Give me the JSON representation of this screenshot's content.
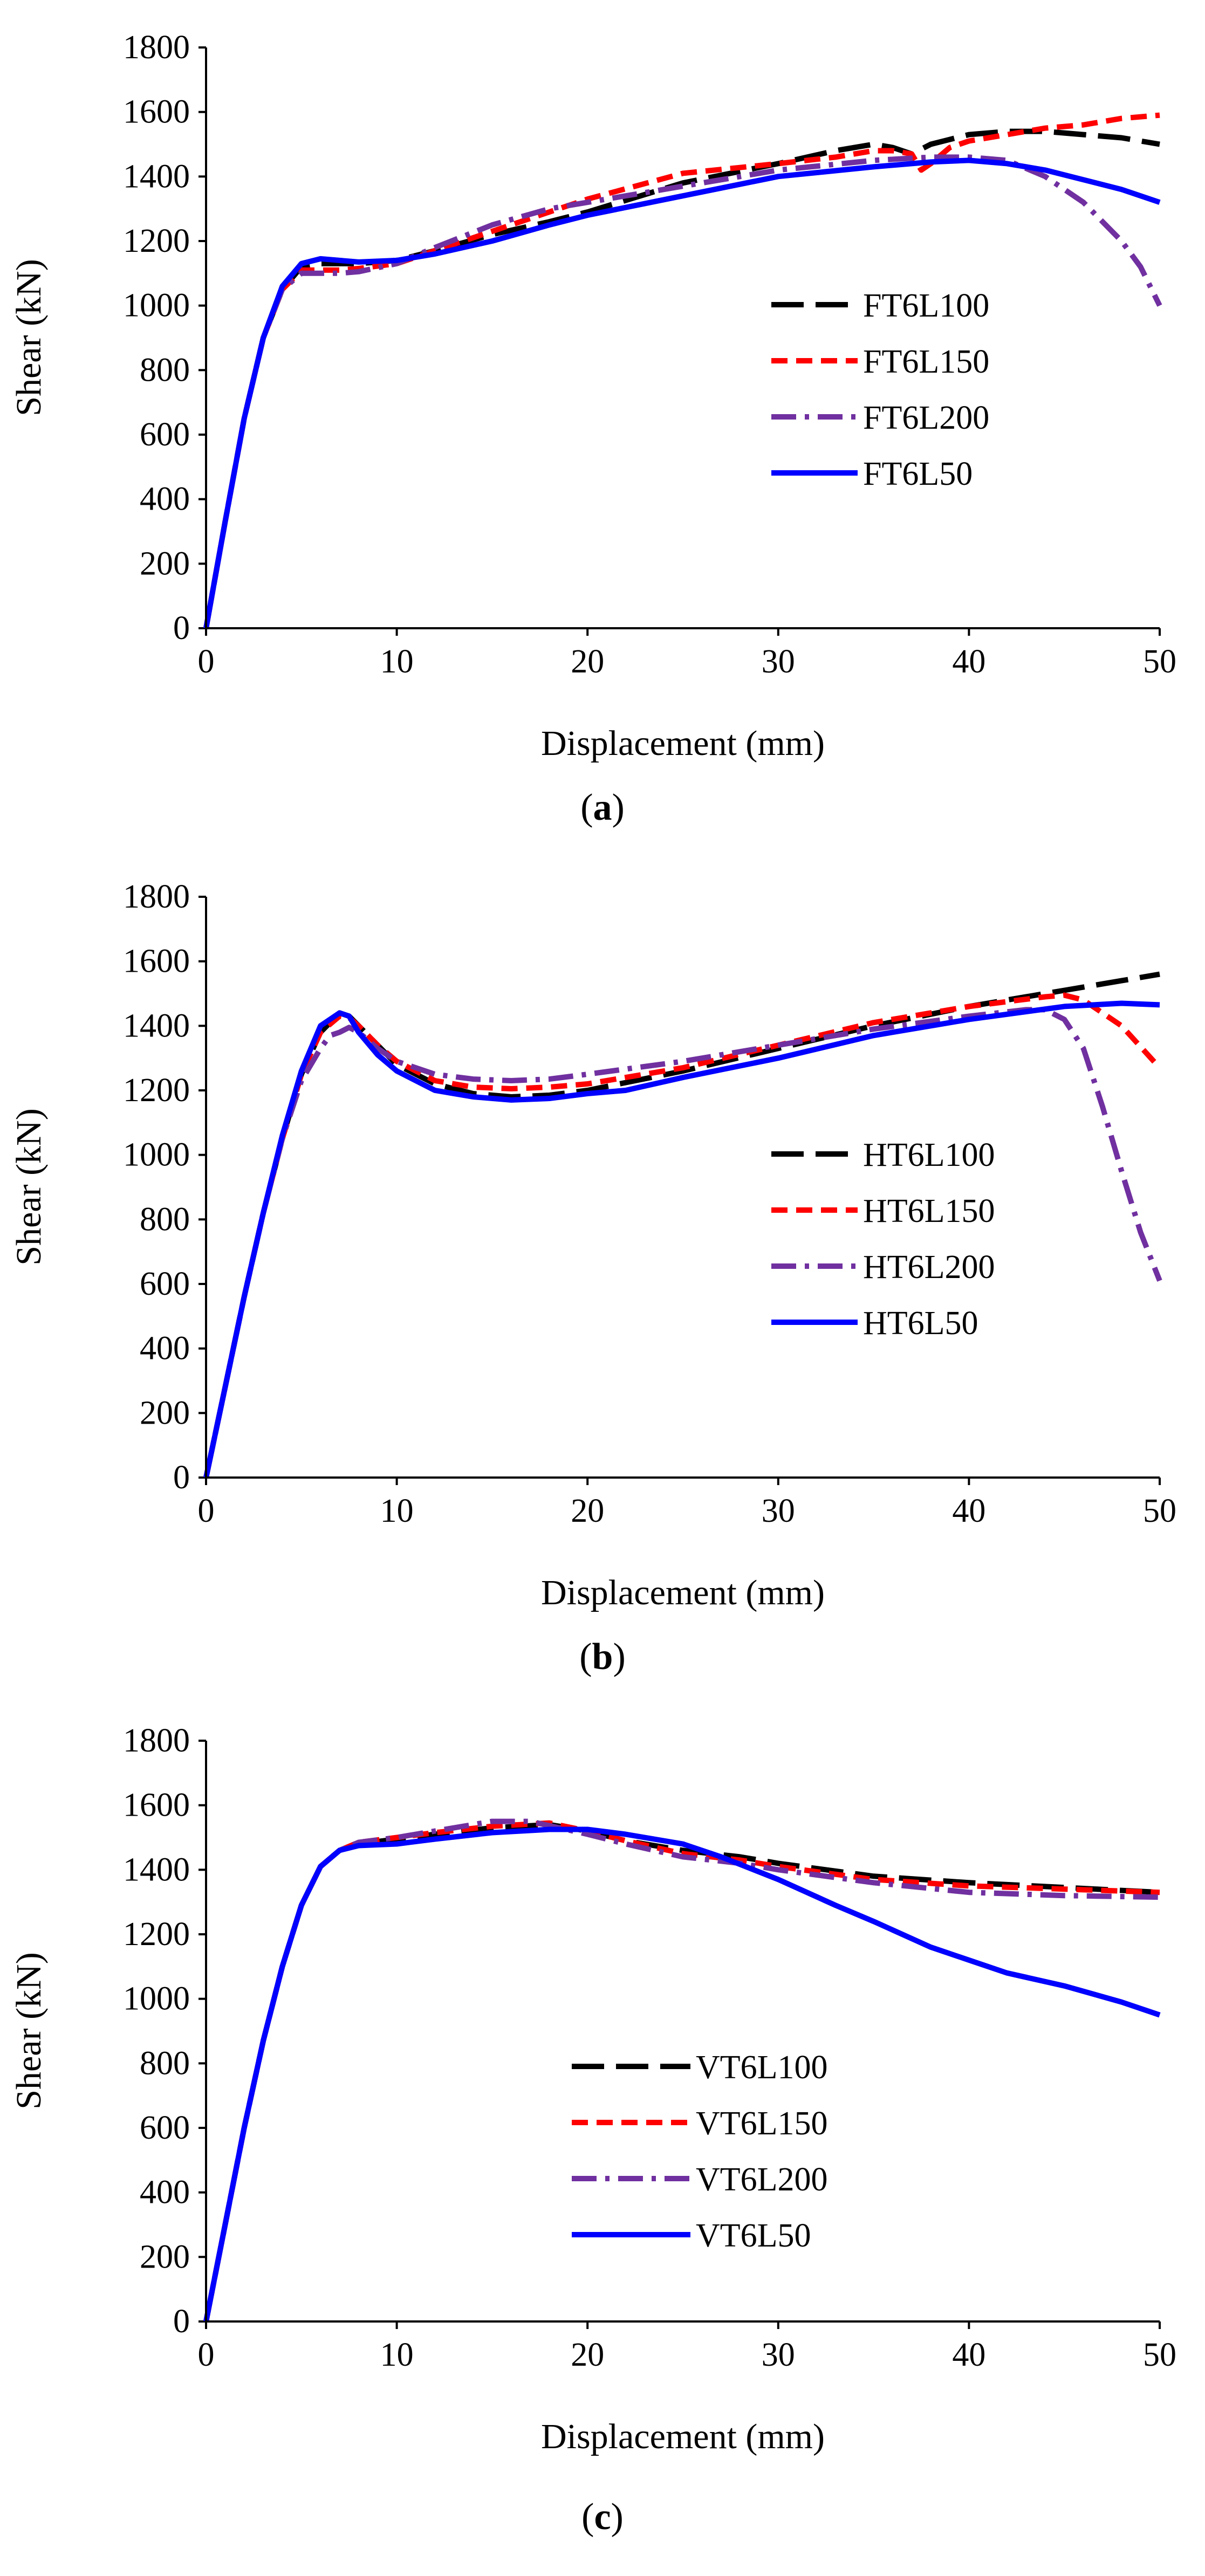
{
  "figure": {
    "panels_count": 3
  },
  "chart_data": [
    {
      "type": "line",
      "caption": {
        "open": "(",
        "letter": "a",
        "close": ")"
      },
      "xlabel": "Displacement (mm)",
      "ylabel": "Shear (kN)",
      "xlim": [
        0,
        50
      ],
      "ylim": [
        0,
        1800
      ],
      "xticks": [
        0,
        10,
        20,
        30,
        40,
        50
      ],
      "yticks": [
        0,
        200,
        400,
        600,
        800,
        1000,
        1200,
        1400,
        1600,
        1800
      ],
      "grid": false,
      "legend_position": "right",
      "series": [
        {
          "name": "FT6L100",
          "color": "#000000",
          "style": "long-dash",
          "x": [
            0,
            1,
            2,
            3,
            4,
            5,
            6,
            7,
            8,
            10,
            12,
            15,
            18,
            20,
            25,
            30,
            33,
            35,
            36,
            37,
            38,
            40,
            42,
            44,
            46,
            48,
            50
          ],
          "y": [
            0,
            330,
            650,
            900,
            1050,
            1120,
            1130,
            1130,
            1130,
            1140,
            1170,
            1220,
            1260,
            1290,
            1380,
            1440,
            1480,
            1500,
            1490,
            1470,
            1500,
            1530,
            1540,
            1540,
            1530,
            1520,
            1500
          ]
        },
        {
          "name": "FT6L150",
          "color": "#ff0000",
          "style": "dash",
          "x": [
            0,
            1,
            2,
            3,
            4,
            5,
            6,
            7,
            8,
            10,
            12,
            15,
            18,
            20,
            25,
            30,
            33,
            35,
            36,
            37,
            37.5,
            38,
            39,
            40,
            42,
            44,
            46,
            48,
            50
          ],
          "y": [
            0,
            330,
            650,
            900,
            1050,
            1110,
            1110,
            1110,
            1115,
            1130,
            1170,
            1230,
            1290,
            1330,
            1410,
            1440,
            1460,
            1480,
            1480,
            1470,
            1420,
            1440,
            1490,
            1510,
            1530,
            1550,
            1560,
            1580,
            1590
          ]
        },
        {
          "name": "FT6L200",
          "color": "#7030a0",
          "style": "dash-dot",
          "x": [
            0,
            1,
            2,
            3,
            4,
            5,
            6,
            7,
            8,
            10,
            12,
            15,
            18,
            20,
            25,
            30,
            35,
            38,
            40,
            42,
            44,
            46,
            48,
            49,
            50
          ],
          "y": [
            0,
            330,
            650,
            900,
            1050,
            1100,
            1100,
            1100,
            1105,
            1130,
            1180,
            1250,
            1300,
            1320,
            1370,
            1420,
            1450,
            1460,
            1460,
            1450,
            1400,
            1320,
            1200,
            1120,
            1000
          ]
        },
        {
          "name": "FT6L50",
          "color": "#0000ff",
          "style": "solid",
          "x": [
            0,
            1,
            2,
            3,
            4,
            5,
            6,
            7,
            8,
            10,
            12,
            15,
            18,
            20,
            25,
            30,
            35,
            38,
            40,
            42,
            44,
            46,
            48,
            50
          ],
          "y": [
            0,
            330,
            650,
            900,
            1060,
            1130,
            1145,
            1140,
            1135,
            1140,
            1160,
            1200,
            1250,
            1280,
            1340,
            1400,
            1430,
            1445,
            1450,
            1440,
            1420,
            1390,
            1360,
            1320
          ]
        }
      ]
    },
    {
      "type": "line",
      "caption": {
        "open": "(",
        "letter": "b",
        "close": ")"
      },
      "xlabel": "Displacement (mm)",
      "ylabel": "Shear (kN)",
      "xlim": [
        0,
        50
      ],
      "ylim": [
        0,
        1800
      ],
      "xticks": [
        0,
        10,
        20,
        30,
        40,
        50
      ],
      "yticks": [
        0,
        200,
        400,
        600,
        800,
        1000,
        1200,
        1400,
        1600,
        1800
      ],
      "grid": false,
      "legend_position": "right",
      "series": [
        {
          "name": "HT6L100",
          "color": "#000000",
          "style": "long-dash",
          "x": [
            0,
            1,
            2,
            3,
            4,
            5,
            6,
            7,
            7.5,
            8,
            9,
            10,
            12,
            14,
            16,
            18,
            20,
            25,
            30,
            35,
            40,
            45,
            48,
            50
          ],
          "y": [
            0,
            280,
            560,
            820,
            1050,
            1250,
            1380,
            1440,
            1430,
            1400,
            1340,
            1280,
            1220,
            1190,
            1180,
            1185,
            1200,
            1260,
            1330,
            1400,
            1460,
            1510,
            1540,
            1560
          ]
        },
        {
          "name": "HT6L150",
          "color": "#ff0000",
          "style": "dash",
          "x": [
            0,
            1,
            2,
            3,
            4,
            5,
            6,
            7,
            7.5,
            8,
            9,
            10,
            12,
            14,
            16,
            18,
            20,
            25,
            30,
            35,
            40,
            44,
            45,
            46,
            48,
            50
          ],
          "y": [
            0,
            280,
            560,
            820,
            1050,
            1250,
            1380,
            1430,
            1425,
            1400,
            1340,
            1290,
            1230,
            1210,
            1205,
            1210,
            1220,
            1270,
            1340,
            1410,
            1460,
            1490,
            1495,
            1480,
            1400,
            1270
          ]
        },
        {
          "name": "HT6L200",
          "color": "#7030a0",
          "style": "dash-dot",
          "x": [
            0,
            1,
            2,
            3,
            4,
            5,
            6,
            6.5,
            7,
            7.5,
            8,
            9,
            10,
            12,
            14,
            16,
            18,
            20,
            25,
            30,
            35,
            40,
            43,
            44,
            45,
            46,
            47,
            48,
            49,
            50
          ],
          "y": [
            0,
            280,
            560,
            820,
            1050,
            1230,
            1330,
            1370,
            1380,
            1395,
            1380,
            1330,
            1290,
            1250,
            1235,
            1230,
            1235,
            1250,
            1290,
            1340,
            1390,
            1430,
            1450,
            1450,
            1420,
            1330,
            1150,
            950,
            760,
            610
          ]
        },
        {
          "name": "HT6L50",
          "color": "#0000ff",
          "style": "solid",
          "x": [
            0,
            1,
            2,
            3,
            4,
            5,
            6,
            7,
            7.5,
            8,
            9,
            10,
            12,
            14,
            16,
            18,
            20,
            22,
            25,
            30,
            35,
            40,
            45,
            48,
            50
          ],
          "y": [
            0,
            280,
            560,
            820,
            1060,
            1260,
            1400,
            1440,
            1430,
            1380,
            1310,
            1260,
            1200,
            1180,
            1170,
            1175,
            1190,
            1200,
            1240,
            1300,
            1370,
            1420,
            1460,
            1470,
            1465
          ]
        }
      ]
    },
    {
      "type": "line",
      "caption": {
        "open": "(",
        "letter": "c",
        "close": ")"
      },
      "xlabel": "Displacement (mm)",
      "ylabel": "Shear (kN)",
      "xlim": [
        0,
        50
      ],
      "ylim": [
        0,
        1800
      ],
      "xticks": [
        0,
        10,
        20,
        30,
        40,
        50
      ],
      "yticks": [
        0,
        200,
        400,
        600,
        800,
        1000,
        1200,
        1400,
        1600,
        1800
      ],
      "grid": false,
      "legend_position": "center-left",
      "series": [
        {
          "name": "VT6L100",
          "color": "#000000",
          "style": "long-dash",
          "x": [
            0,
            1,
            2,
            3,
            4,
            5,
            6,
            7,
            8,
            10,
            12,
            15,
            18,
            20,
            22,
            25,
            28,
            30,
            35,
            40,
            45,
            50
          ],
          "y": [
            0,
            300,
            600,
            870,
            1100,
            1290,
            1410,
            1460,
            1480,
            1495,
            1510,
            1530,
            1540,
            1520,
            1490,
            1460,
            1440,
            1420,
            1380,
            1360,
            1345,
            1330
          ]
        },
        {
          "name": "VT6L150",
          "color": "#ff0000",
          "style": "dash",
          "x": [
            0,
            1,
            2,
            3,
            4,
            5,
            6,
            7,
            8,
            10,
            12,
            15,
            18,
            20,
            22,
            25,
            28,
            30,
            35,
            40,
            45,
            50
          ],
          "y": [
            0,
            300,
            600,
            870,
            1100,
            1290,
            1410,
            1460,
            1485,
            1500,
            1515,
            1535,
            1545,
            1520,
            1490,
            1450,
            1430,
            1410,
            1370,
            1350,
            1340,
            1330
          ]
        },
        {
          "name": "VT6L200",
          "color": "#7030a0",
          "style": "dash-dot",
          "x": [
            0,
            1,
            2,
            3,
            4,
            5,
            6,
            7,
            8,
            10,
            12,
            15,
            17,
            20,
            22,
            25,
            28,
            30,
            35,
            40,
            45,
            50
          ],
          "y": [
            0,
            300,
            600,
            870,
            1100,
            1290,
            1410,
            1460,
            1485,
            1500,
            1520,
            1550,
            1550,
            1510,
            1480,
            1440,
            1420,
            1400,
            1360,
            1330,
            1320,
            1315
          ]
        },
        {
          "name": "VT6L50",
          "color": "#0000ff",
          "style": "solid",
          "x": [
            0,
            1,
            2,
            3,
            4,
            5,
            6,
            7,
            8,
            10,
            12,
            15,
            18,
            20,
            22,
            25,
            27,
            30,
            33,
            35,
            38,
            40,
            42,
            45,
            48,
            50
          ],
          "y": [
            0,
            300,
            600,
            870,
            1100,
            1290,
            1410,
            1460,
            1475,
            1480,
            1495,
            1515,
            1525,
            1525,
            1510,
            1480,
            1440,
            1370,
            1290,
            1240,
            1160,
            1120,
            1080,
            1040,
            990,
            950
          ]
        }
      ]
    }
  ]
}
